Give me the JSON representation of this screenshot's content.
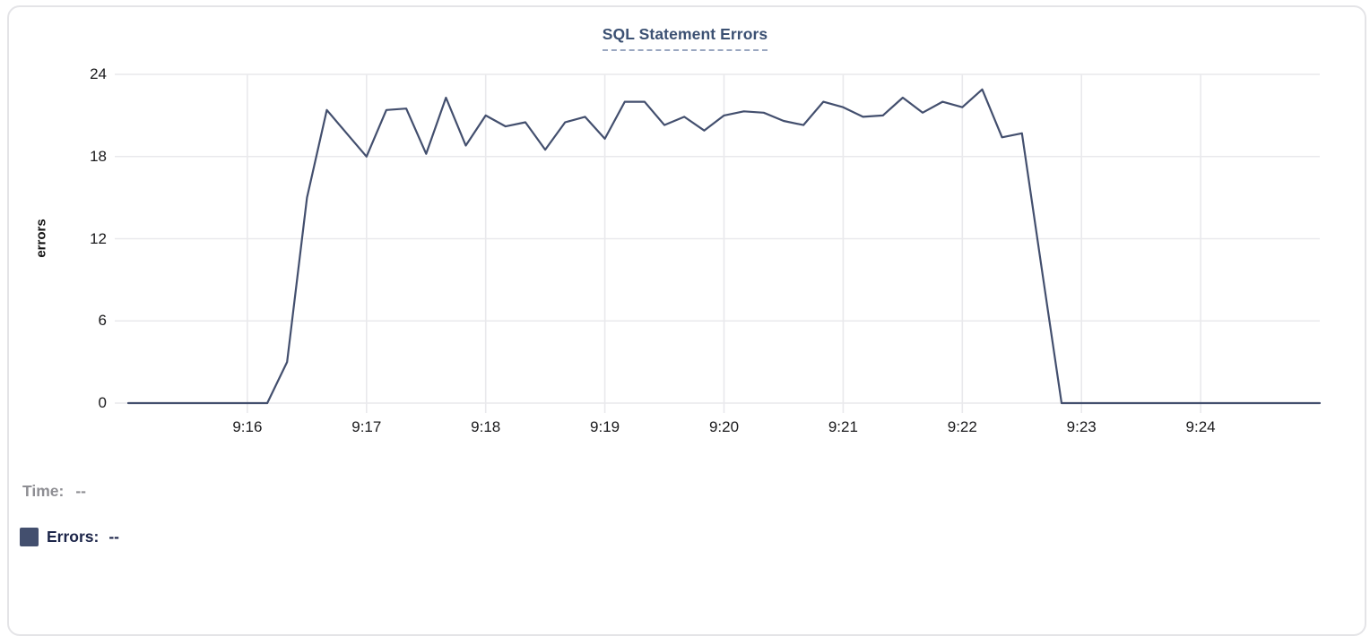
{
  "chart_data": {
    "type": "line",
    "title": "SQL Statement Errors",
    "xlabel": "",
    "ylabel": "errors",
    "ylim": [
      0,
      24
    ],
    "y_ticks": [
      0,
      6,
      12,
      18,
      24
    ],
    "x_ticks": [
      "9:16",
      "9:17",
      "9:18",
      "9:19",
      "9:20",
      "9:21",
      "9:22",
      "9:23",
      "9:24"
    ],
    "x_range": [
      "9:15:00",
      "9:25:00"
    ],
    "sample_interval_seconds": 10,
    "grid": true,
    "legend_position": "bottom-left",
    "series": [
      {
        "name": "Errors",
        "color": "#434f6e",
        "times": [
          "9:15:00",
          "9:15:10",
          "9:15:20",
          "9:15:30",
          "9:15:40",
          "9:15:50",
          "9:16:00",
          "9:16:10",
          "9:16:20",
          "9:16:30",
          "9:16:40",
          "9:16:50",
          "9:17:00",
          "9:17:10",
          "9:17:20",
          "9:17:30",
          "9:17:40",
          "9:17:50",
          "9:18:00",
          "9:18:10",
          "9:18:20",
          "9:18:30",
          "9:18:40",
          "9:18:50",
          "9:19:00",
          "9:19:10",
          "9:19:20",
          "9:19:30",
          "9:19:40",
          "9:19:50",
          "9:20:00",
          "9:20:10",
          "9:20:20",
          "9:20:30",
          "9:20:40",
          "9:20:50",
          "9:21:00",
          "9:21:10",
          "9:21:20",
          "9:21:30",
          "9:21:40",
          "9:21:50",
          "9:22:00",
          "9:22:10",
          "9:22:20",
          "9:22:30",
          "9:22:40",
          "9:22:50",
          "9:23:00",
          "9:23:10",
          "9:23:20",
          "9:23:30",
          "9:23:40",
          "9:23:50",
          "9:24:00",
          "9:24:10",
          "9:24:20",
          "9:24:30",
          "9:24:40",
          "9:24:50",
          "9:25:00"
        ],
        "values": [
          0,
          0,
          0,
          0,
          0,
          0,
          0,
          0,
          3,
          15,
          21.4,
          19.7,
          18,
          21.4,
          21.5,
          18.2,
          22.3,
          18.8,
          21,
          20.2,
          20.5,
          18.5,
          20.5,
          20.9,
          19.3,
          22,
          22,
          20.3,
          20.9,
          19.9,
          21,
          21.3,
          21.2,
          20.6,
          20.3,
          22,
          21.6,
          20.9,
          21,
          22.3,
          21.2,
          22,
          21.6,
          22.9,
          19.4,
          19.7,
          9.8,
          0,
          0,
          0,
          0,
          0,
          0,
          0,
          0,
          0,
          0,
          0,
          0,
          0,
          0
        ]
      }
    ]
  },
  "tooltip": {
    "time_label": "Time:",
    "time_value": "--",
    "errors_label": "Errors:",
    "errors_value": "--"
  },
  "colors": {
    "line": "#434f6e",
    "swatch": "#434f6e",
    "title": "#3c5173",
    "title_underline": "#9aa7c0",
    "grid": "#e9e9ec",
    "tick_label": "#19191b",
    "time_text": "#8e8e93",
    "errors_text": "#1c2549",
    "card_border": "#e4e4e7"
  }
}
